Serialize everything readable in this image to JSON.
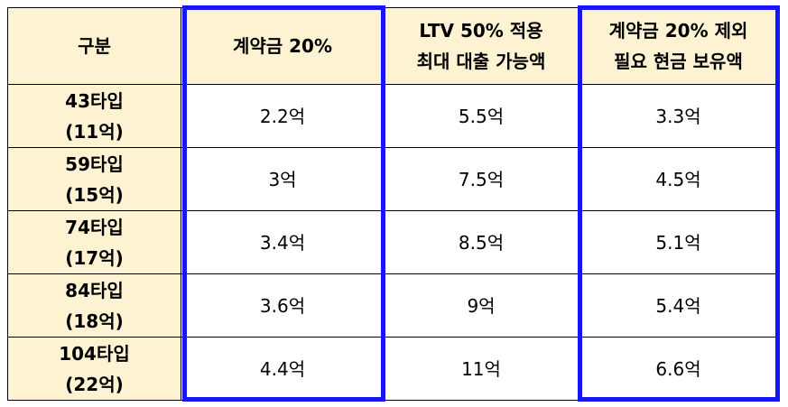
{
  "table": {
    "header": [
      [
        "구분"
      ],
      [
        "계약금 20%"
      ],
      [
        "LTV 50% 적용",
        "최대 대출 가능액"
      ],
      [
        "계약금 20% 제외",
        "필요 현금 보유액"
      ]
    ],
    "rows": [
      [
        [
          "43타입",
          "(11억)"
        ],
        [
          "2.2억"
        ],
        [
          "5.5억"
        ],
        [
          "3.3억"
        ]
      ],
      [
        [
          "59타입",
          "(15억)"
        ],
        [
          "3억"
        ],
        [
          "7.5억"
        ],
        [
          "4.5억"
        ]
      ],
      [
        [
          "74타입",
          "(17억)"
        ],
        [
          "3.4억"
        ],
        [
          "8.5억"
        ],
        [
          "5.1억"
        ]
      ],
      [
        [
          "84타입",
          "(18억)"
        ],
        [
          "3.6억"
        ],
        [
          "9억"
        ],
        [
          "5.4억"
        ]
      ],
      [
        [
          "104타입",
          "(22억)"
        ],
        [
          "4.4억"
        ],
        [
          "11억"
        ],
        [
          "6.6억"
        ]
      ]
    ]
  }
}
